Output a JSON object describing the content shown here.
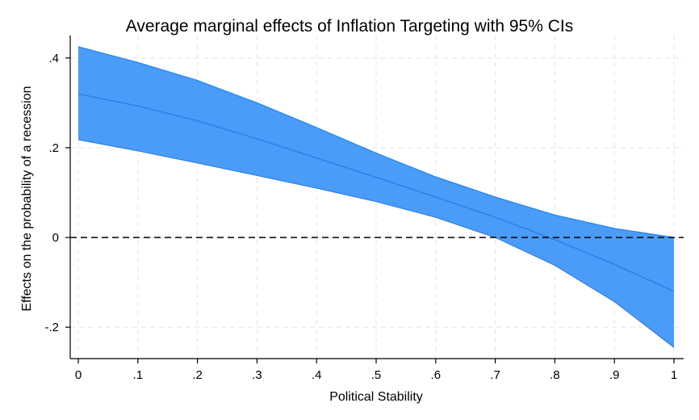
{
  "chart_data": {
    "type": "area",
    "title": "Average marginal effects of Inflation Targeting with 95% CIs",
    "xlabel": "Political Stability",
    "ylabel": "Effects on the probability of a recession",
    "xlim": [
      0,
      1
    ],
    "ylim": [
      -0.27,
      0.45
    ],
    "x_ticks": [
      0,
      0.1,
      0.2,
      0.3,
      0.4,
      0.5,
      0.6,
      0.7,
      0.8,
      0.9,
      1
    ],
    "x_tick_labels": [
      "0",
      ".1",
      ".2",
      ".3",
      ".4",
      ".5",
      ".6",
      ".7",
      ".8",
      ".9",
      "1"
    ],
    "y_ticks": [
      -0.2,
      0,
      0.2,
      0.4
    ],
    "y_tick_labels": [
      "-.2",
      "0",
      ".2",
      ".4"
    ],
    "grid": true,
    "reference_line": {
      "y": 0,
      "style": "dashed"
    },
    "x": [
      0,
      0.1,
      0.2,
      0.3,
      0.4,
      0.5,
      0.6,
      0.7,
      0.8,
      0.9,
      1
    ],
    "series": [
      {
        "role": "estimate",
        "values": [
          0.32,
          0.293,
          0.26,
          0.22,
          0.177,
          0.134,
          0.09,
          0.045,
          -0.005,
          -0.06,
          -0.12
        ]
      },
      {
        "role": "upper_ci",
        "values": [
          0.425,
          0.39,
          0.35,
          0.3,
          0.245,
          0.188,
          0.135,
          0.09,
          0.05,
          0.02,
          0.0
        ]
      },
      {
        "role": "lower_ci",
        "values": [
          0.218,
          0.193,
          0.166,
          0.138,
          0.11,
          0.08,
          0.045,
          0.0,
          -0.062,
          -0.143,
          -0.245
        ]
      }
    ],
    "colors": {
      "band": "#4a9cf8",
      "line": "#2b83e6",
      "reference": "#000000"
    }
  }
}
